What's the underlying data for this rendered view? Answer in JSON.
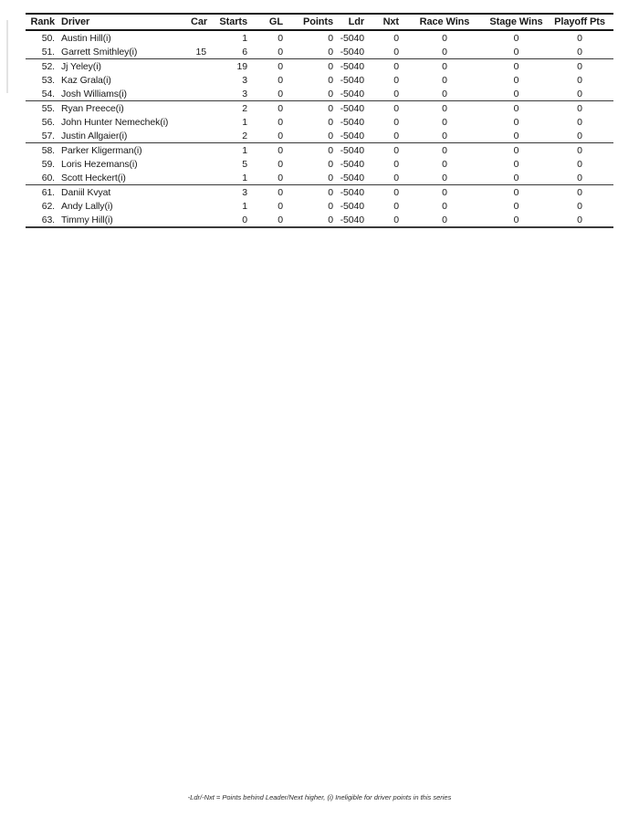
{
  "table": {
    "columns": [
      {
        "key": "rank",
        "label": "Rank"
      },
      {
        "key": "driver",
        "label": "Driver"
      },
      {
        "key": "car",
        "label": "Car"
      },
      {
        "key": "starts",
        "label": "Starts"
      },
      {
        "key": "gl",
        "label": "GL"
      },
      {
        "key": "points",
        "label": "Points"
      },
      {
        "key": "ldr",
        "label": "Ldr"
      },
      {
        "key": "nxt",
        "label": "Nxt"
      },
      {
        "key": "race_wins",
        "label": "Race Wins"
      },
      {
        "key": "stage_wins",
        "label": "Stage Wins"
      },
      {
        "key": "playoff_pts",
        "label": "Playoff Pts"
      }
    ],
    "rows": [
      {
        "rank": "50.",
        "driver": "Austin Hill(i)",
        "car": "",
        "starts": "1",
        "gl": "0",
        "points": "0",
        "ldr": "-5040",
        "nxt": "0",
        "race_wins": "0",
        "stage_wins": "0",
        "playoff_pts": "0",
        "group_end": false
      },
      {
        "rank": "51.",
        "driver": "Garrett Smithley(i)",
        "car": "15",
        "starts": "6",
        "gl": "0",
        "points": "0",
        "ldr": "-5040",
        "nxt": "0",
        "race_wins": "0",
        "stage_wins": "0",
        "playoff_pts": "0",
        "group_end": true
      },
      {
        "rank": "52.",
        "driver": "Jj Yeley(i)",
        "car": "",
        "starts": "19",
        "gl": "0",
        "points": "0",
        "ldr": "-5040",
        "nxt": "0",
        "race_wins": "0",
        "stage_wins": "0",
        "playoff_pts": "0",
        "group_end": false
      },
      {
        "rank": "53.",
        "driver": "Kaz Grala(i)",
        "car": "",
        "starts": "3",
        "gl": "0",
        "points": "0",
        "ldr": "-5040",
        "nxt": "0",
        "race_wins": "0",
        "stage_wins": "0",
        "playoff_pts": "0",
        "group_end": false
      },
      {
        "rank": "54.",
        "driver": "Josh Williams(i)",
        "car": "",
        "starts": "3",
        "gl": "0",
        "points": "0",
        "ldr": "-5040",
        "nxt": "0",
        "race_wins": "0",
        "stage_wins": "0",
        "playoff_pts": "0",
        "group_end": true
      },
      {
        "rank": "55.",
        "driver": "Ryan Preece(i)",
        "car": "",
        "starts": "2",
        "gl": "0",
        "points": "0",
        "ldr": "-5040",
        "nxt": "0",
        "race_wins": "0",
        "stage_wins": "0",
        "playoff_pts": "0",
        "group_end": false
      },
      {
        "rank": "56.",
        "driver": "John Hunter Nemechek(i)",
        "car": "",
        "starts": "1",
        "gl": "0",
        "points": "0",
        "ldr": "-5040",
        "nxt": "0",
        "race_wins": "0",
        "stage_wins": "0",
        "playoff_pts": "0",
        "group_end": false
      },
      {
        "rank": "57.",
        "driver": "Justin Allgaier(i)",
        "car": "",
        "starts": "2",
        "gl": "0",
        "points": "0",
        "ldr": "-5040",
        "nxt": "0",
        "race_wins": "0",
        "stage_wins": "0",
        "playoff_pts": "0",
        "group_end": true
      },
      {
        "rank": "58.",
        "driver": "Parker Kligerman(i)",
        "car": "",
        "starts": "1",
        "gl": "0",
        "points": "0",
        "ldr": "-5040",
        "nxt": "0",
        "race_wins": "0",
        "stage_wins": "0",
        "playoff_pts": "0",
        "group_end": false
      },
      {
        "rank": "59.",
        "driver": "Loris Hezemans(i)",
        "car": "",
        "starts": "5",
        "gl": "0",
        "points": "0",
        "ldr": "-5040",
        "nxt": "0",
        "race_wins": "0",
        "stage_wins": "0",
        "playoff_pts": "0",
        "group_end": false
      },
      {
        "rank": "60.",
        "driver": "Scott Heckert(i)",
        "car": "",
        "starts": "1",
        "gl": "0",
        "points": "0",
        "ldr": "-5040",
        "nxt": "0",
        "race_wins": "0",
        "stage_wins": "0",
        "playoff_pts": "0",
        "group_end": true
      },
      {
        "rank": "61.",
        "driver": "Daniil Kvyat",
        "car": "",
        "starts": "3",
        "gl": "0",
        "points": "0",
        "ldr": "-5040",
        "nxt": "0",
        "race_wins": "0",
        "stage_wins": "0",
        "playoff_pts": "0",
        "group_end": false
      },
      {
        "rank": "62.",
        "driver": "Andy Lally(i)",
        "car": "",
        "starts": "1",
        "gl": "0",
        "points": "0",
        "ldr": "-5040",
        "nxt": "0",
        "race_wins": "0",
        "stage_wins": "0",
        "playoff_pts": "0",
        "group_end": false
      },
      {
        "rank": "63.",
        "driver": "Timmy Hill(i)",
        "car": "",
        "starts": "0",
        "gl": "0",
        "points": "0",
        "ldr": "-5040",
        "nxt": "0",
        "race_wins": "0",
        "stage_wins": "0",
        "playoff_pts": "0",
        "group_end": false
      }
    ]
  },
  "footer": {
    "note": "-Ldr/-Nxt = Points behind Leader/Next higher, (i) Ineligible for driver points in this series"
  }
}
